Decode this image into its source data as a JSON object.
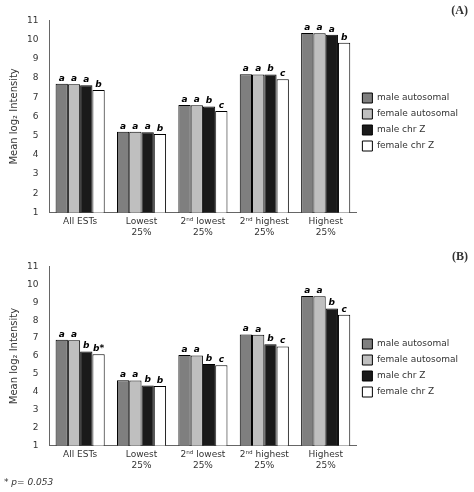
{
  "chart_data": [
    {
      "type": "bar",
      "title": "(A)",
      "categories": [
        "All ESTs",
        "Lowest\n25%",
        "2ⁿᵈ lowest\n25%",
        "2ⁿᵈ highest\n25%",
        "Highest\n25%"
      ],
      "series": [
        {
          "name": "male autosomal",
          "color": "#7f7f7f",
          "values": [
            7.7,
            5.2,
            6.6,
            8.2,
            10.35
          ],
          "annotations": [
            "a",
            "a",
            "a",
            "a",
            "a"
          ]
        },
        {
          "name": "female autosomal",
          "color": "#bfbfbf",
          "values": [
            7.68,
            5.2,
            6.58,
            8.18,
            10.33
          ],
          "annotations": [
            "a",
            "a",
            "a",
            "a",
            "a"
          ]
        },
        {
          "name": "male chr Z",
          "color": "#1a1a1a",
          "values": [
            7.62,
            5.18,
            6.52,
            8.18,
            10.25
          ],
          "annotations": [
            "a",
            "a",
            "b",
            "b",
            "a"
          ]
        },
        {
          "name": "female chr Z",
          "color": "#ffffff",
          "values": [
            7.38,
            5.08,
            6.28,
            7.93,
            9.83
          ],
          "annotations": [
            "b",
            "b",
            "c",
            "c",
            "b"
          ]
        }
      ],
      "ylabel": "Mean log₂ Intensity",
      "ylim": [
        1,
        11
      ],
      "yticks": [
        1,
        2,
        3,
        4,
        5,
        6,
        7,
        8,
        9,
        10,
        11
      ],
      "grid": false,
      "legend": "right"
    },
    {
      "type": "bar",
      "title": "(B)",
      "categories": [
        "All ESTs",
        "Lowest\n25%",
        "2ⁿᵈ lowest\n25%",
        "2ⁿᵈ highest\n25%",
        "Highest\n25%"
      ],
      "series": [
        {
          "name": "male autosomal",
          "color": "#7f7f7f",
          "values": [
            6.9,
            4.65,
            6.05,
            7.2,
            9.35
          ],
          "annotations": [
            "a",
            "a",
            "a",
            "a",
            "a"
          ]
        },
        {
          "name": "female autosomal",
          "color": "#bfbfbf",
          "values": [
            6.88,
            4.63,
            6.03,
            7.18,
            9.33
          ],
          "annotations": [
            "a",
            "a",
            "a",
            "a",
            "a"
          ]
        },
        {
          "name": "male chr Z",
          "color": "#1a1a1a",
          "values": [
            6.25,
            4.35,
            5.55,
            6.65,
            8.65
          ],
          "annotations": [
            "b",
            "b",
            "b",
            "b",
            "b"
          ]
        },
        {
          "name": "female chr Z",
          "color": "#ffffff",
          "values": [
            6.1,
            4.33,
            5.48,
            6.53,
            8.3
          ],
          "annotations": [
            "b*",
            "b",
            "c",
            "c",
            "c"
          ]
        }
      ],
      "ylabel": "Mean log₂ Intensity",
      "ylim": [
        1,
        11
      ],
      "yticks": [
        1,
        2,
        3,
        4,
        5,
        6,
        7,
        8,
        9,
        10,
        11
      ],
      "grid": false,
      "legend": "right",
      "footnote": "* p= 0.053"
    }
  ]
}
